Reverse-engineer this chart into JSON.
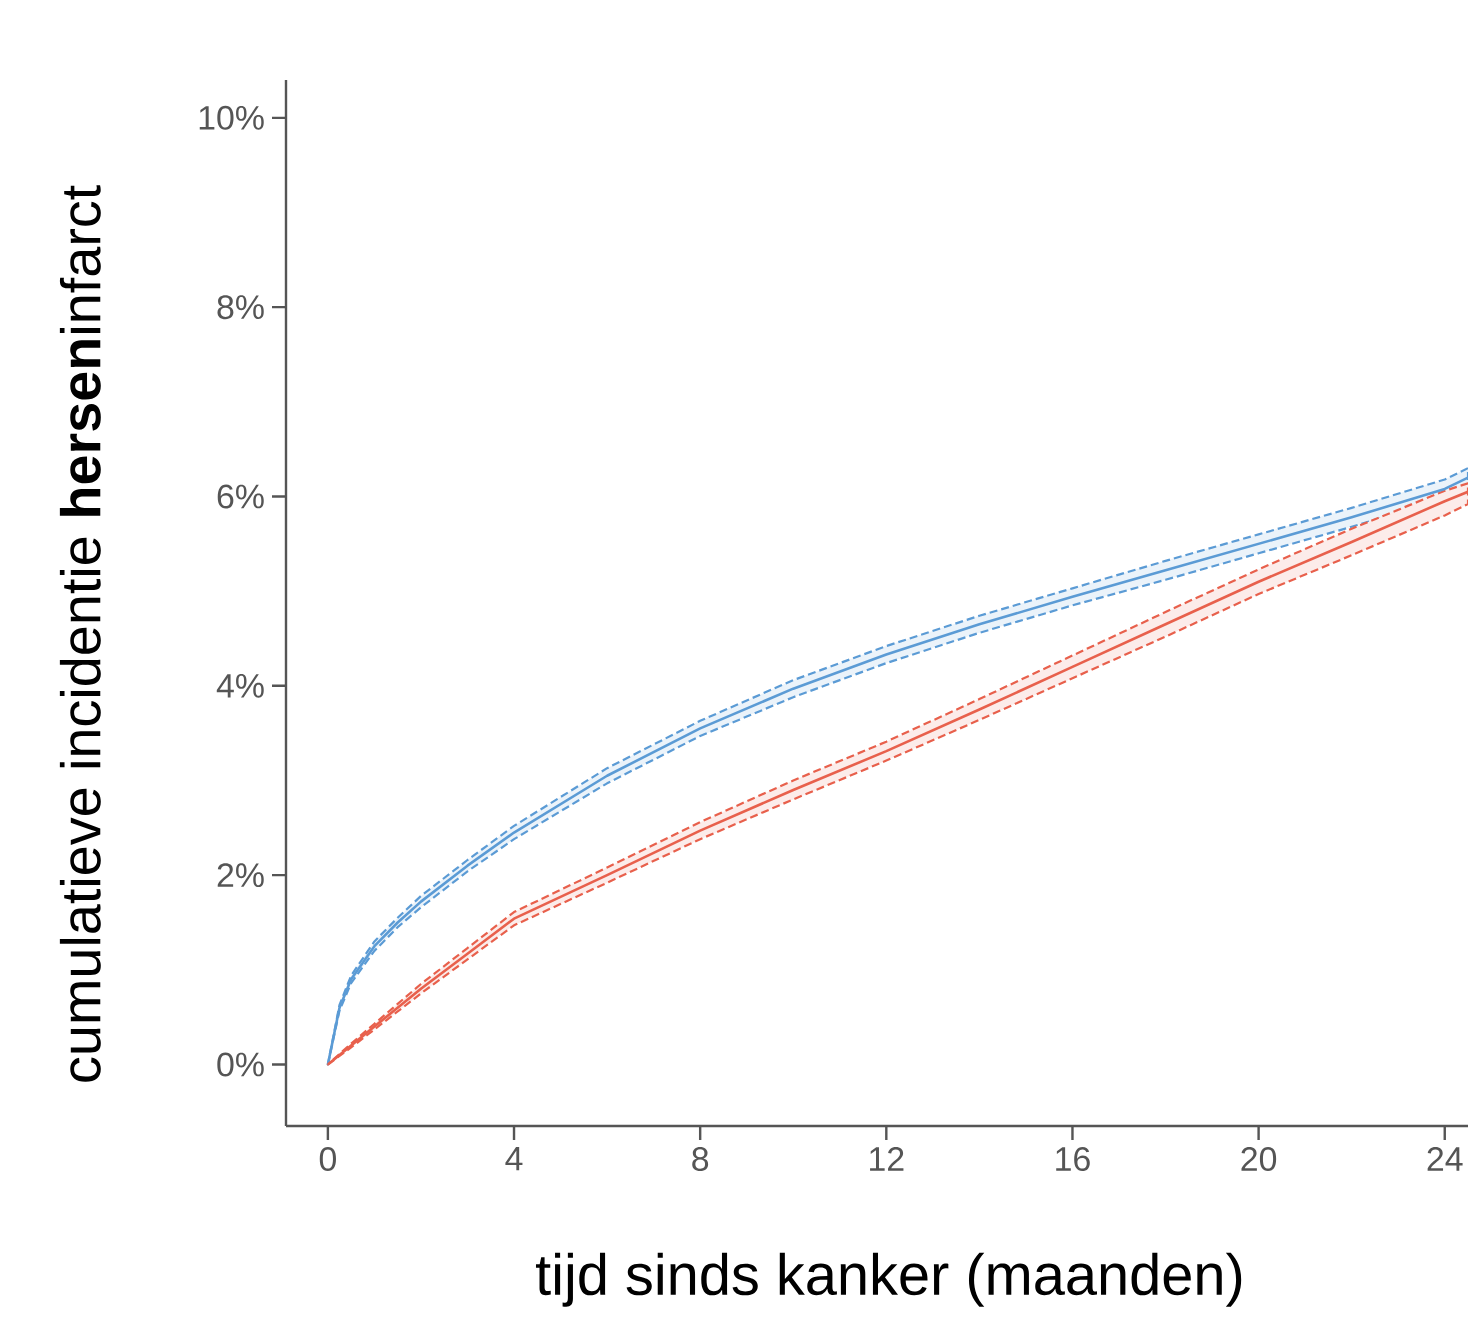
{
  "chart_data": {
    "type": "line",
    "xlabel": "tijd sinds kanker (maanden)",
    "ylabel": "cumulatieve incidentie **hersen**infarct",
    "x": [
      0,
      0.25,
      0.5,
      1,
      1.5,
      2,
      3,
      4,
      6,
      8,
      10,
      12,
      14,
      16,
      18,
      20,
      22,
      24,
      24.5
    ],
    "series": [
      {
        "color": "#5b9bd5",
        "values": [
          0,
          0.6,
          0.9,
          1.25,
          1.5,
          1.72,
          2.1,
          2.45,
          3.05,
          3.55,
          3.97,
          4.33,
          4.65,
          4.94,
          5.22,
          5.5,
          5.78,
          6.08,
          6.2
        ],
        "lower": [
          0,
          0.57,
          0.86,
          1.2,
          1.45,
          1.66,
          2.04,
          2.38,
          2.97,
          3.47,
          3.88,
          4.24,
          4.56,
          4.85,
          5.12,
          5.4,
          5.68,
          5.98,
          6.1
        ],
        "upper": [
          0,
          0.63,
          0.94,
          1.3,
          1.55,
          1.78,
          2.16,
          2.52,
          3.13,
          3.63,
          4.06,
          4.42,
          4.74,
          5.03,
          5.32,
          5.6,
          5.88,
          6.18,
          6.3
        ]
      },
      {
        "color": "#e8604c",
        "values": [
          0,
          0.1,
          0.2,
          0.4,
          0.6,
          0.8,
          1.17,
          1.54,
          2.0,
          2.47,
          2.9,
          3.31,
          3.75,
          4.2,
          4.65,
          5.1,
          5.52,
          5.95,
          6.05
        ],
        "lower": [
          0,
          0.09,
          0.18,
          0.37,
          0.56,
          0.75,
          1.11,
          1.47,
          1.92,
          2.38,
          2.8,
          3.21,
          3.64,
          4.08,
          4.52,
          4.97,
          5.38,
          5.8,
          5.92
        ],
        "upper": [
          0,
          0.11,
          0.22,
          0.43,
          0.64,
          0.85,
          1.23,
          1.61,
          2.08,
          2.56,
          3.0,
          3.41,
          3.86,
          4.32,
          4.78,
          5.23,
          5.66,
          6.06,
          6.14
        ]
      }
    ],
    "xlim": [
      -0.9,
      24.5
    ],
    "ylim": [
      -0.65,
      10.4
    ],
    "xticks": [
      0,
      4,
      8,
      12,
      16,
      20,
      24
    ],
    "yticks": [
      {
        "value": 0,
        "label": "0%"
      },
      {
        "value": 2,
        "label": "2%"
      },
      {
        "value": 4,
        "label": "4%"
      },
      {
        "value": 6,
        "label": "6%"
      },
      {
        "value": 8,
        "label": "8%"
      },
      {
        "value": 10,
        "label": "10%"
      }
    ],
    "grid": false,
    "line_style": "solid",
    "marker": "none"
  }
}
